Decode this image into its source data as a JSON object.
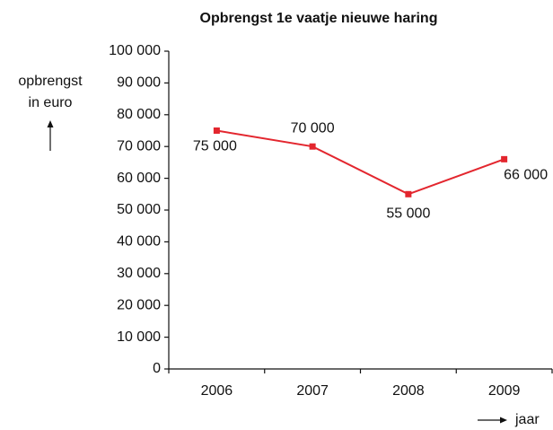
{
  "chart_data": {
    "type": "line",
    "title": "Opbrengst 1e vaatje nieuwe haring",
    "ylabel": [
      "opbrengst",
      "in euro"
    ],
    "xlabel": "jaar",
    "categories": [
      "2006",
      "2007",
      "2008",
      "2009"
    ],
    "series": [
      {
        "name": "Opbrengst",
        "color": "#e3262e",
        "values": [
          75000,
          70000,
          55000,
          66000
        ],
        "value_labels": [
          "75 000",
          "70 000",
          "55 000",
          "66 000"
        ]
      }
    ],
    "ylim": [
      0,
      100000
    ],
    "yticks": [
      0,
      {
        "value": 10000,
        "label": "10 000"
      },
      {
        "value": 20000,
        "label": "20 000"
      },
      {
        "value": 30000,
        "label": "30 000"
      },
      {
        "value": 40000,
        "label": "40 000"
      },
      {
        "value": 50000,
        "label": "50 000"
      },
      {
        "value": 60000,
        "label": "60 000"
      },
      {
        "value": 70000,
        "label": "70 000"
      },
      {
        "value": 80000,
        "label": "80 000"
      },
      {
        "value": 90000,
        "label": "90 000"
      },
      {
        "value": 100000,
        "label": "100 000"
      }
    ],
    "grid": false
  }
}
